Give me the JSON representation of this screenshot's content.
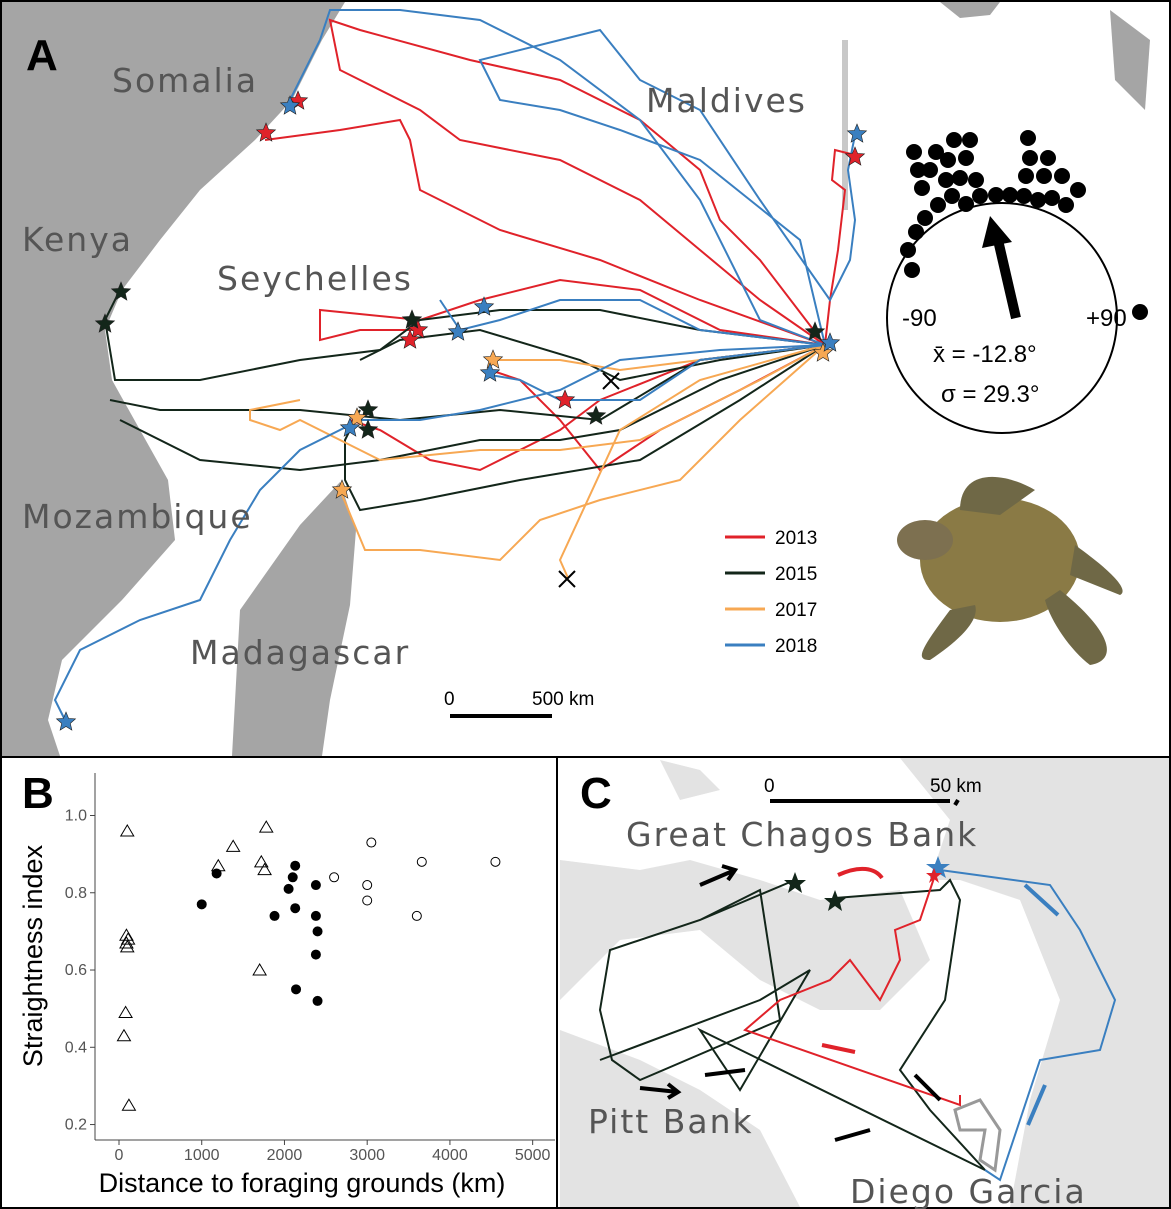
{
  "panel_a": {
    "letter": "A",
    "places": [
      "Somalia",
      "Kenya",
      "Seychelles",
      "Mozambique",
      "Madagascar",
      "Maldives"
    ],
    "legend": [
      {
        "label": "2013",
        "color": "#e0222a"
      },
      {
        "label": "2015",
        "color": "#13261a"
      },
      {
        "label": "2017",
        "color": "#f7a853"
      },
      {
        "label": "2018",
        "color": "#3a7fc0"
      }
    ],
    "scale_bar": [
      "0",
      "500 km"
    ],
    "rose": {
      "left": "-90",
      "right": "+90",
      "mean": "x̄ = -12.8°",
      "sd": "σ = 29.3°"
    }
  },
  "panel_c": {
    "letter": "C",
    "places": [
      "Great Chagos Bank",
      "Pitt Bank",
      "Diego Garcia"
    ],
    "scale_bar": [
      "0",
      "50 km"
    ]
  },
  "chart_data": {
    "type": "scatter",
    "letter": "B",
    "x_label": "Distance to foraging grounds (km)",
    "y_label": "Straightness index",
    "xlim": [
      -290,
      5270
    ],
    "ylim": [
      0.16,
      1.11
    ],
    "xticks": [
      0,
      1000,
      2000,
      3000,
      4000,
      5000
    ],
    "yticks": [
      0.2,
      0.4,
      0.6,
      0.8,
      {
        "value": 1,
        "label": "1.0"
      }
    ],
    "series": [
      {
        "marker": "open-triangle",
        "color": "#000000",
        "x": [
          100,
          90,
          110,
          90,
          100,
          80,
          60,
          120,
          1200,
          1380,
          1720,
          1760,
          1780,
          1700
        ],
        "values": [
          0.96,
          0.69,
          0.68,
          0.67,
          0.66,
          0.49,
          0.43,
          0.25,
          0.87,
          0.92,
          0.88,
          0.86,
          0.97,
          0.6
        ]
      },
      {
        "marker": "filled-circle",
        "color": "#000000",
        "x": [
          1000,
          1180,
          1880,
          2050,
          2100,
          2130,
          2130,
          2380,
          2380,
          2400,
          2380,
          2140,
          2400
        ],
        "values": [
          0.77,
          0.85,
          0.74,
          0.81,
          0.84,
          0.87,
          0.76,
          0.82,
          0.74,
          0.7,
          0.64,
          0.55,
          0.52
        ]
      },
      {
        "marker": "open-circle",
        "color": "#000000",
        "x": [
          2600,
          3000,
          3000,
          3050,
          3660,
          3600,
          4550
        ],
        "values": [
          0.84,
          0.82,
          0.78,
          0.93,
          0.88,
          0.74,
          0.88
        ]
      }
    ]
  }
}
